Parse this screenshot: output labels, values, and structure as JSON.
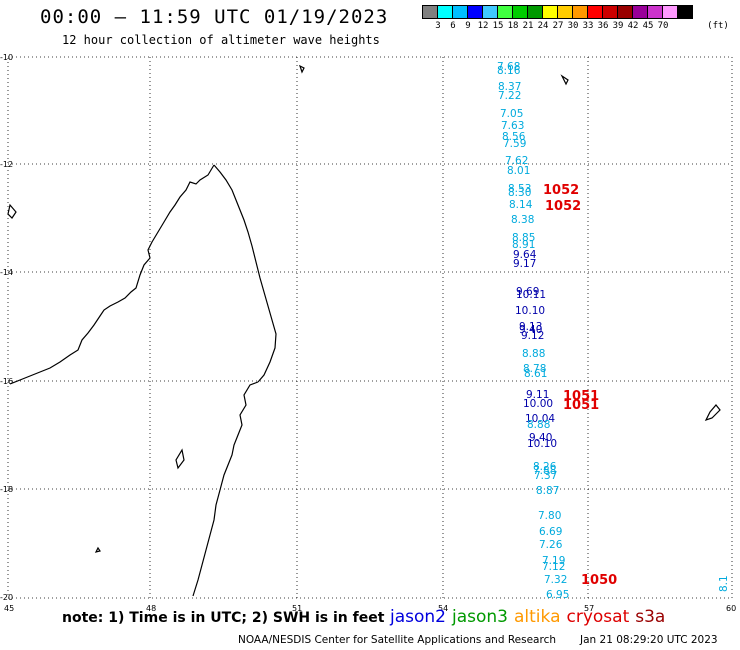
{
  "header": {
    "title": "00:00 – 11:59 UTC 01/19/2023",
    "subtitle": "12 hour collection of altimeter wave heights"
  },
  "colorbar": {
    "unit": "(ft)",
    "colors": [
      "#808080",
      "#00ffff",
      "#00bfff",
      "#0000ff",
      "#40c8ff",
      "#40ff40",
      "#00cc00",
      "#009900",
      "#ffff00",
      "#ffcc00",
      "#ff9900",
      "#ff0000",
      "#cc0000",
      "#990000",
      "#990099",
      "#cc33cc",
      "#ff99ff",
      "#000000"
    ],
    "labels": [
      "3",
      "6",
      "9",
      "12",
      "15",
      "18",
      "21",
      "24",
      "27",
      "30",
      "33",
      "36",
      "39",
      "42",
      "45",
      "70"
    ]
  },
  "axes": {
    "lon_labels": [
      "45",
      "48",
      "51",
      "54",
      "57",
      "60"
    ],
    "lat_labels": [
      "-10",
      "-12",
      "-14",
      "-16",
      "-18",
      "-20"
    ]
  },
  "wave_heights": [
    {
      "v": "7.68",
      "c": "#00aadd"
    },
    {
      "v": "8.16",
      "c": "#00aadd"
    },
    {
      "v": "8.37",
      "c": "#00aadd"
    },
    {
      "v": "7.22",
      "c": "#00aadd"
    },
    {
      "v": "7.05",
      "c": "#00aadd"
    },
    {
      "v": "7.63",
      "c": "#00aadd"
    },
    {
      "v": "8.56",
      "c": "#00aadd"
    },
    {
      "v": "7.59",
      "c": "#00aadd"
    },
    {
      "v": "7.62",
      "c": "#00aadd"
    },
    {
      "v": "8.01",
      "c": "#00aadd"
    },
    {
      "v": "8.53",
      "c": "#00aadd"
    },
    {
      "v": "8.30",
      "c": "#00aadd"
    },
    {
      "v": "8.14",
      "c": "#00aadd"
    },
    {
      "v": "8.38",
      "c": "#00aadd"
    },
    {
      "v": "8.85",
      "c": "#00aadd"
    },
    {
      "v": "8.91",
      "c": "#00aadd"
    },
    {
      "v": "9.64",
      "c": "#0000aa"
    },
    {
      "v": "9.17",
      "c": "#0000aa"
    },
    {
      "v": "9.69",
      "c": "#0000aa"
    },
    {
      "v": "10.11",
      "c": "#0000aa"
    },
    {
      "v": "10.10",
      "c": "#0000aa"
    },
    {
      "v": "9.13",
      "c": "#0000aa"
    },
    {
      "v": "9.40",
      "c": "#0000aa"
    },
    {
      "v": "9.12",
      "c": "#0000aa"
    },
    {
      "v": "8.88",
      "c": "#00aadd"
    },
    {
      "v": "8.78",
      "c": "#00aadd"
    },
    {
      "v": "8.61",
      "c": "#00aadd"
    },
    {
      "v": "9.11",
      "c": "#0000aa"
    },
    {
      "v": "10.00",
      "c": "#0000aa"
    },
    {
      "v": "10.04",
      "c": "#0000aa"
    },
    {
      "v": "8.88",
      "c": "#00aadd"
    },
    {
      "v": "9.40",
      "c": "#0000aa"
    },
    {
      "v": "10.10",
      "c": "#0000aa"
    },
    {
      "v": "8.26",
      "c": "#00aadd"
    },
    {
      "v": "7.88",
      "c": "#00aadd"
    },
    {
      "v": "7.37",
      "c": "#00aadd"
    },
    {
      "v": "8.87",
      "c": "#00aadd"
    },
    {
      "v": "7.80",
      "c": "#00aadd"
    },
    {
      "v": "6.69",
      "c": "#00aadd"
    },
    {
      "v": "7.26",
      "c": "#00aadd"
    },
    {
      "v": "7.19",
      "c": "#00aadd"
    },
    {
      "v": "7.12",
      "c": "#00aadd"
    },
    {
      "v": "7.32",
      "c": "#00aadd"
    },
    {
      "v": "6.95",
      "c": "#00aadd"
    },
    {
      "v": "8.1",
      "c": "#00aadd"
    }
  ],
  "pressure_labels": [
    "1052",
    "1052",
    "1051",
    "1051",
    "1050"
  ],
  "footer": {
    "note": "note: 1) Time is in UTC; 2) SWH is in feet",
    "satellites": [
      {
        "name": "jason2",
        "color": "#0000dd"
      },
      {
        "name": "jason3",
        "color": "#009900"
      },
      {
        "name": "altika",
        "color": "#ff9900"
      },
      {
        "name": "cryosat",
        "color": "#dd0000"
      },
      {
        "name": "s3a",
        "color": "#990000"
      }
    ],
    "credit": "NOAA/NESDIS Center for Satellite Applications and Research",
    "timestamp": "Jan 21 08:29:20 UTC 2023"
  }
}
